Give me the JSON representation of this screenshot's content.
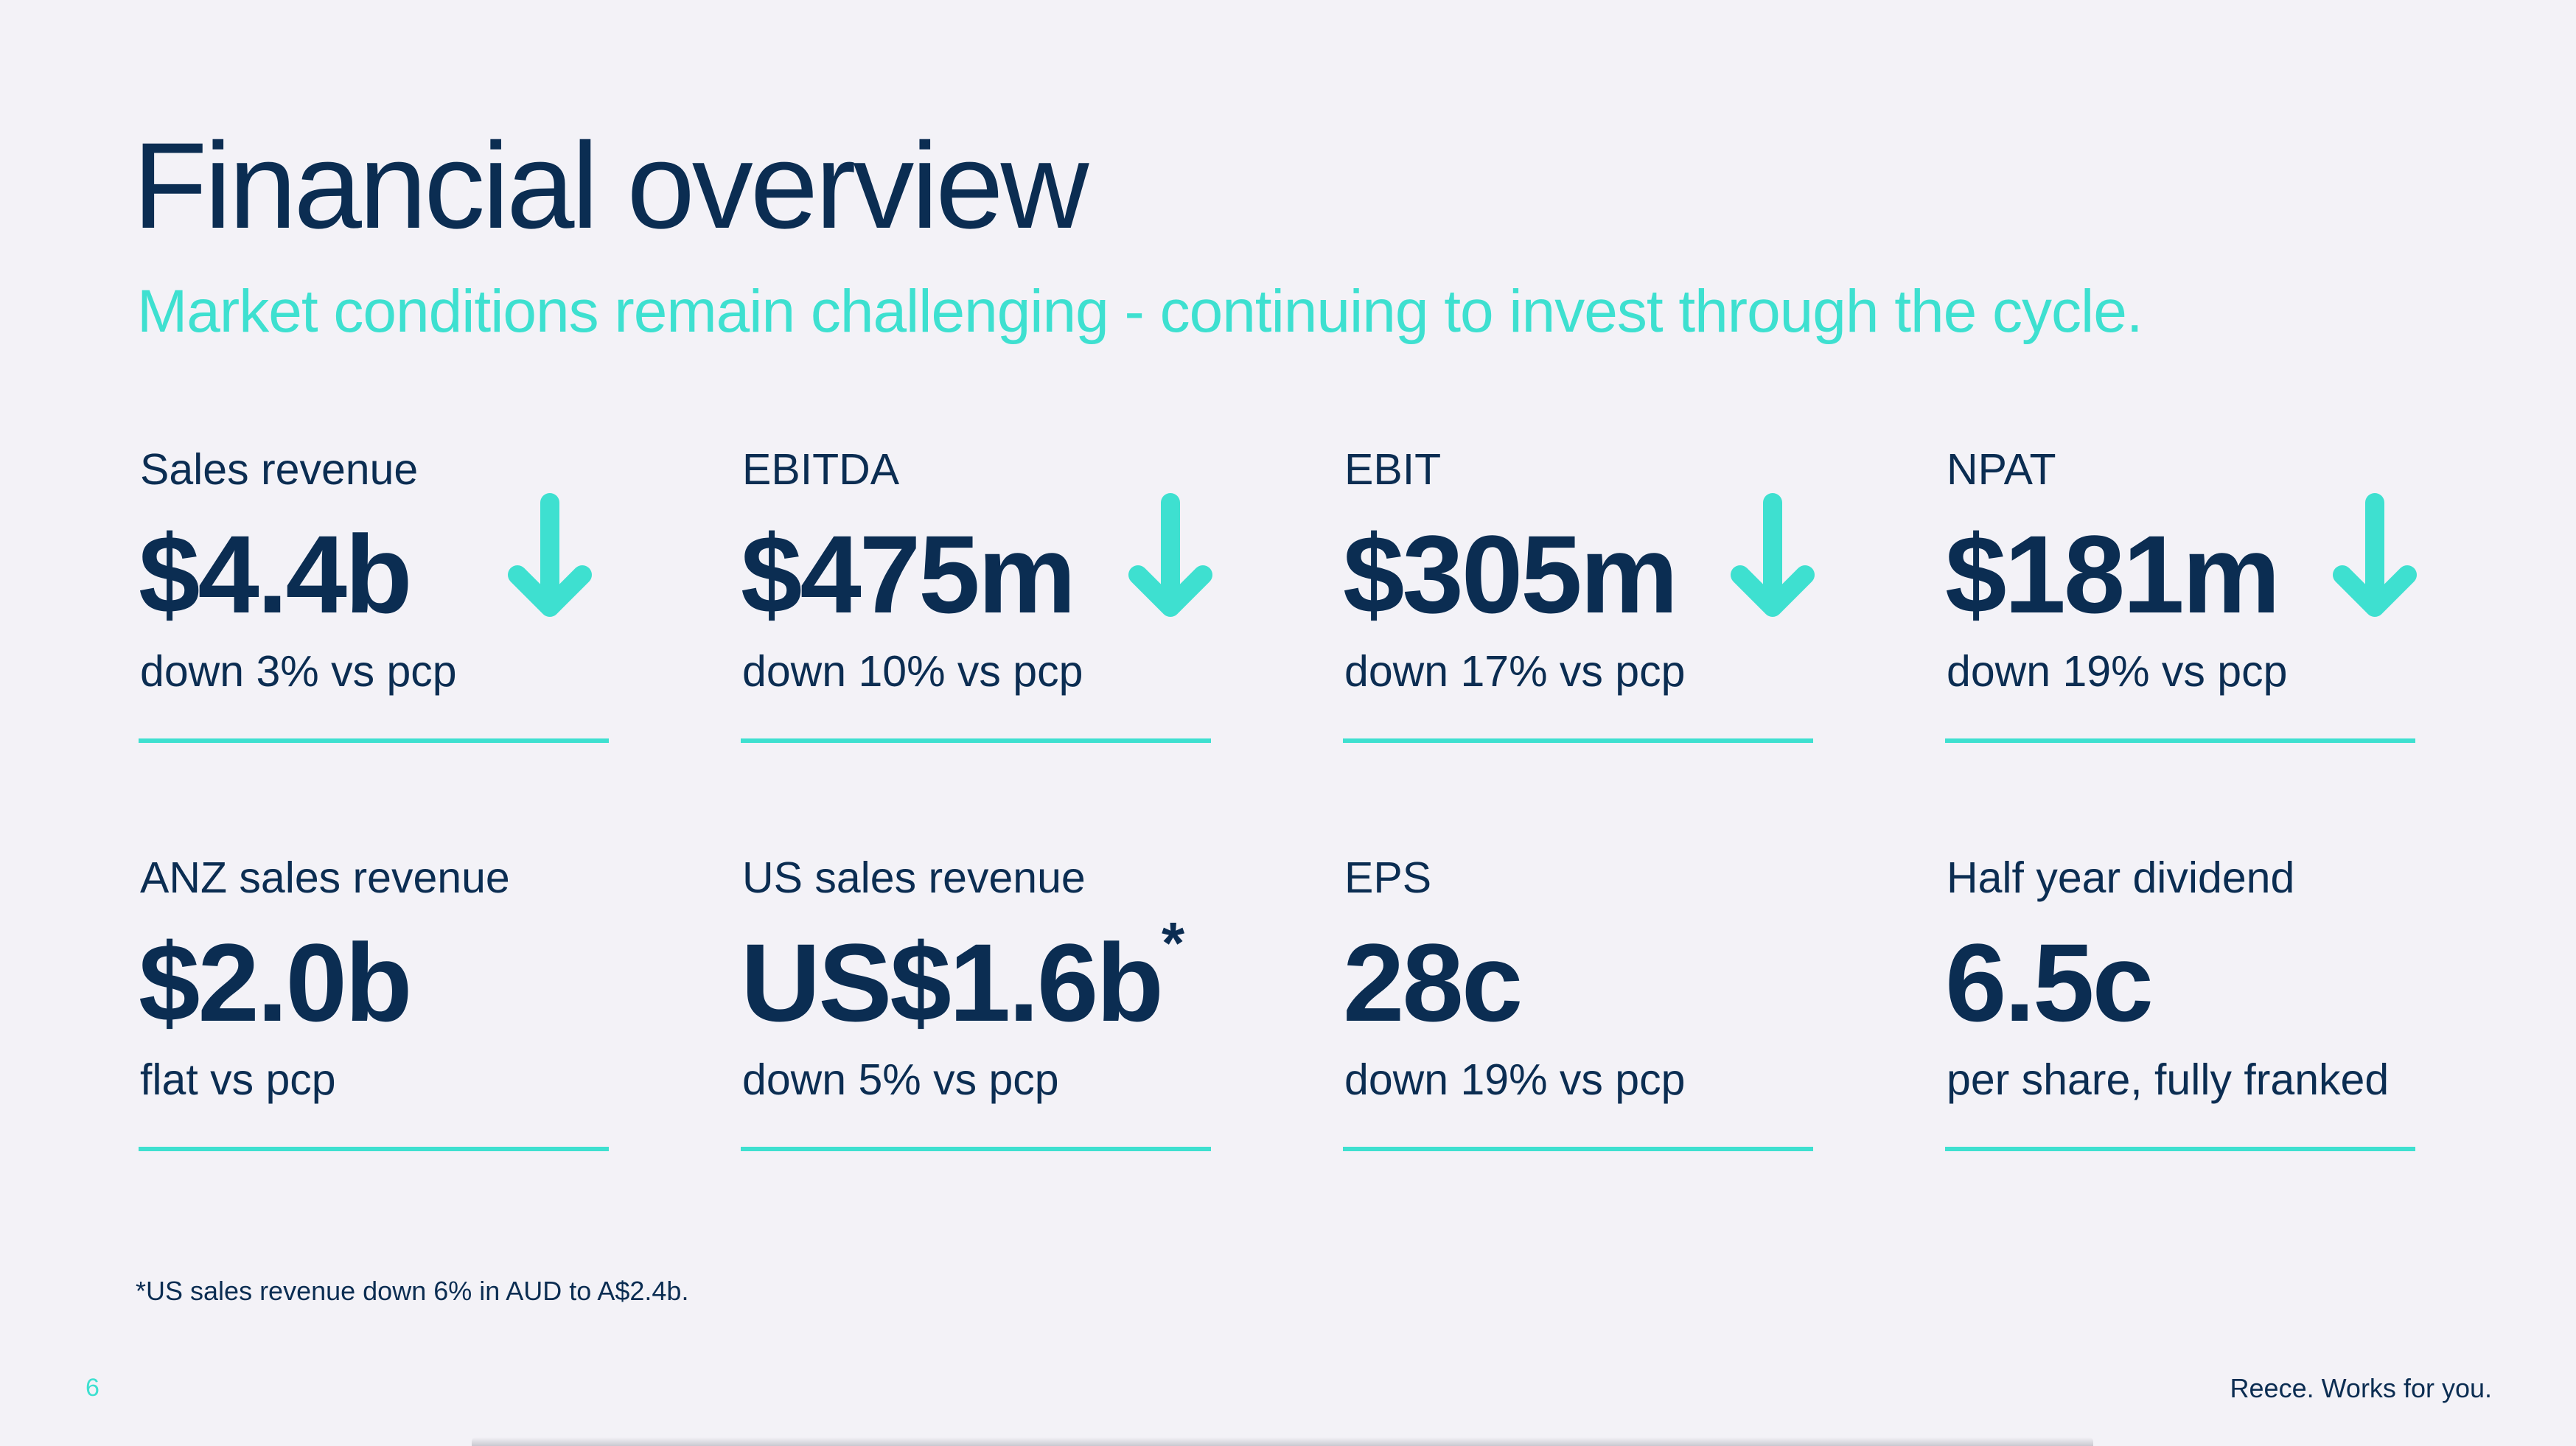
{
  "slide": {
    "title": "Financial overview",
    "subtitle": "Market conditions remain challenging - continuing to invest through the cycle.",
    "footnote": "*US sales revenue down 6% in AUD to A$2.4b.",
    "page_number": "6",
    "tagline": "Reece. Works for you."
  },
  "metrics": [
    {
      "label": "Sales revenue",
      "value": "$4.4b",
      "note": "down 3% vs pcp",
      "trend": "down"
    },
    {
      "label": "EBITDA",
      "value": "$475m",
      "note": "down 10% vs pcp",
      "trend": "down"
    },
    {
      "label": "EBIT",
      "value": "$305m",
      "note": "down 17% vs pcp",
      "trend": "down"
    },
    {
      "label": "NPAT",
      "value": "$181m",
      "note": "down 19% vs pcp",
      "trend": "down"
    },
    {
      "label": "ANZ sales revenue",
      "value": "$2.0b",
      "note": "flat vs pcp"
    },
    {
      "label": "US sales revenue",
      "value": "US$1.6b",
      "value_mark": "*",
      "note": "down 5% vs pcp"
    },
    {
      "label": "EPS",
      "value": "28c",
      "note": "down 19% vs pcp"
    },
    {
      "label": "Half year dividend",
      "value": "6.5c",
      "note": "per share, fully franked"
    }
  ],
  "colors": {
    "navy": "#0b2d52",
    "accent": "#3ee0d0",
    "background": "#f3f2f7"
  },
  "icons": {
    "trend_down": "arrow-down-icon"
  }
}
